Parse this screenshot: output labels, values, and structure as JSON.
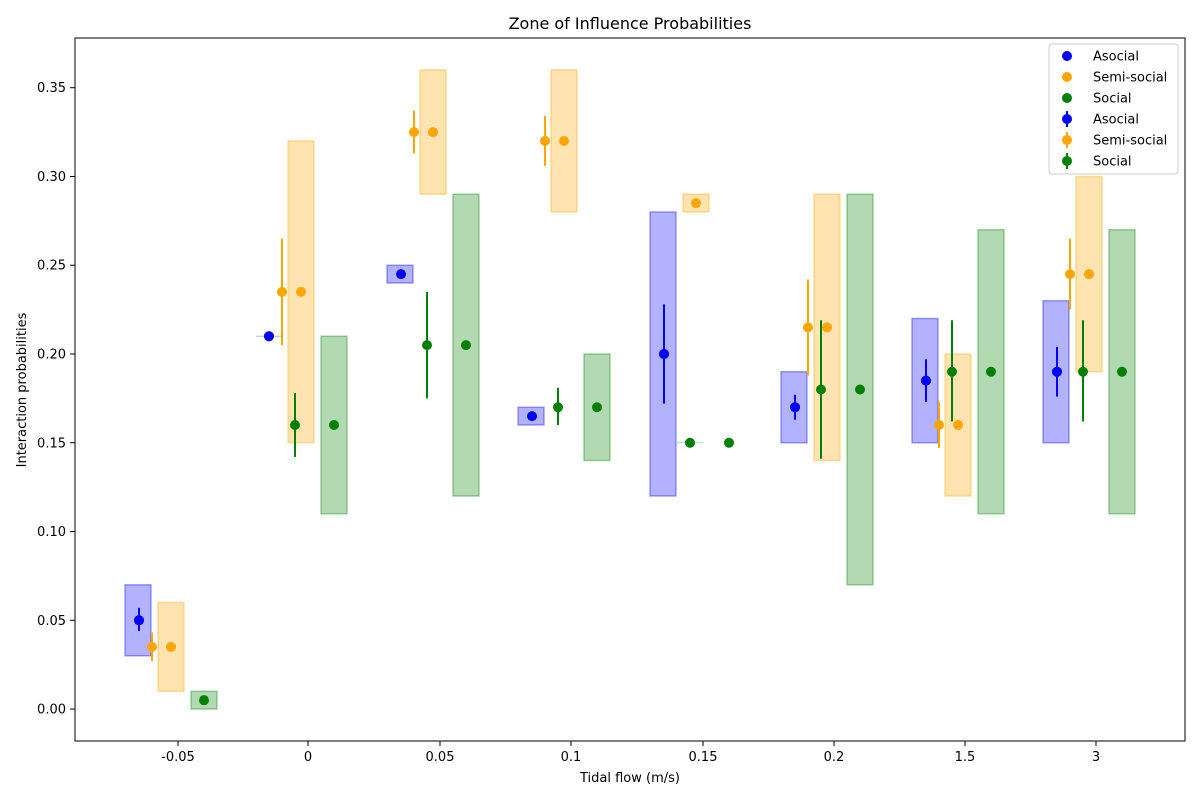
{
  "chart_data": {
    "type": "scatter",
    "title": "Zone of Influence Probabilities",
    "xlabel": "Tidal flow (m/s)",
    "ylabel": "Interaction probabilities",
    "ylim": [
      -0.018,
      0.378
    ],
    "x_tick_labels": [
      "-0.05",
      "0",
      "0.05",
      "0.1",
      "0.15",
      "0.2",
      "1.5",
      "3"
    ],
    "y_ticks": [
      0.0,
      0.05,
      0.1,
      0.15,
      0.2,
      0.25,
      0.3,
      0.35
    ],
    "y_tick_labels": [
      "0.00",
      "0.05",
      "0.10",
      "0.15",
      "0.20",
      "0.25",
      "0.30",
      "0.35"
    ],
    "grid": false,
    "legend_position": "top-right",
    "legend": [
      "Asocial",
      "Semi-social",
      "Social",
      "Asocial",
      "Semi-social",
      "Social"
    ],
    "colors": {
      "Asocial": "#0000ff",
      "Semi-social": "#ffa500",
      "Social": "#008000"
    },
    "series": [
      {
        "name": "Asocial",
        "groups": [
          {
            "category": "-0.05",
            "errorbar": {
              "y": 0.05,
              "lo": 0.044,
              "hi": 0.057
            },
            "point": {
              "y": 0.05
            },
            "range": [
              0.03,
              0.07
            ]
          },
          {
            "category": "0",
            "errorbar": {
              "y": 0.21,
              "lo": 0.21,
              "hi": 0.21
            },
            "point": {
              "y": 0.21
            },
            "range": null
          },
          {
            "category": "0.05",
            "errorbar": null,
            "point": {
              "y": 0.245
            },
            "range": [
              0.24,
              0.25
            ]
          },
          {
            "category": "0.1",
            "errorbar": null,
            "point": {
              "y": 0.165
            },
            "range": [
              0.16,
              0.17
            ]
          },
          {
            "category": "0.15",
            "errorbar": {
              "y": 0.2,
              "lo": 0.172,
              "hi": 0.228
            },
            "point": {
              "y": 0.2
            },
            "range": [
              0.12,
              0.28
            ]
          },
          {
            "category": "0.2",
            "errorbar": {
              "y": 0.17,
              "lo": 0.163,
              "hi": 0.177
            },
            "point": {
              "y": 0.17
            },
            "range": [
              0.15,
              0.19
            ]
          },
          {
            "category": "1.5",
            "errorbar": {
              "y": 0.185,
              "lo": 0.173,
              "hi": 0.197
            },
            "point": {
              "y": 0.185
            },
            "range": [
              0.15,
              0.22
            ]
          },
          {
            "category": "3",
            "errorbar": {
              "y": 0.19,
              "lo": 0.176,
              "hi": 0.204
            },
            "point": {
              "y": 0.19
            },
            "range": [
              0.15,
              0.23
            ]
          }
        ]
      },
      {
        "name": "Semi-social",
        "groups": [
          {
            "category": "-0.05",
            "errorbar": {
              "y": 0.035,
              "lo": 0.027,
              "hi": 0.043
            },
            "point": {
              "y": 0.035
            },
            "range": [
              0.01,
              0.06
            ]
          },
          {
            "category": "0",
            "errorbar": {
              "y": 0.235,
              "lo": 0.205,
              "hi": 0.265
            },
            "point": {
              "y": 0.235
            },
            "range": [
              0.15,
              0.32
            ]
          },
          {
            "category": "0.05",
            "errorbar": {
              "y": 0.325,
              "lo": 0.313,
              "hi": 0.337
            },
            "point": {
              "y": 0.325
            },
            "range": [
              0.29,
              0.36
            ]
          },
          {
            "category": "0.1",
            "errorbar": {
              "y": 0.32,
              "lo": 0.306,
              "hi": 0.334
            },
            "point": {
              "y": 0.32
            },
            "range": [
              0.28,
              0.36
            ]
          },
          {
            "category": "0.15",
            "errorbar": null,
            "point": {
              "y": 0.285
            },
            "range": [
              0.28,
              0.29
            ]
          },
          {
            "category": "0.2",
            "errorbar": {
              "y": 0.215,
              "lo": 0.188,
              "hi": 0.242
            },
            "point": {
              "y": 0.215
            },
            "range": [
              0.14,
              0.29
            ]
          },
          {
            "category": "1.5",
            "errorbar": {
              "y": 0.16,
              "lo": 0.147,
              "hi": 0.173
            },
            "point": {
              "y": 0.16
            },
            "range": [
              0.12,
              0.2
            ]
          },
          {
            "category": "3",
            "errorbar": {
              "y": 0.245,
              "lo": 0.225,
              "hi": 0.265
            },
            "point": {
              "y": 0.245
            },
            "range": [
              0.19,
              0.3
            ]
          }
        ]
      },
      {
        "name": "Social",
        "groups": [
          {
            "category": "-0.05",
            "errorbar": null,
            "point": {
              "y": 0.005
            },
            "range": [
              0.0,
              0.01
            ]
          },
          {
            "category": "0",
            "errorbar": {
              "y": 0.16,
              "lo": 0.142,
              "hi": 0.178
            },
            "point": {
              "y": 0.16
            },
            "range": [
              0.11,
              0.21
            ]
          },
          {
            "category": "0.05",
            "errorbar": {
              "y": 0.205,
              "lo": 0.175,
              "hi": 0.235
            },
            "point": {
              "y": 0.205
            },
            "range": [
              0.12,
              0.29
            ]
          },
          {
            "category": "0.1",
            "errorbar": {
              "y": 0.17,
              "lo": 0.16,
              "hi": 0.181
            },
            "point": {
              "y": 0.17
            },
            "range": [
              0.14,
              0.2
            ]
          },
          {
            "category": "0.15",
            "errorbar": {
              "y": 0.15,
              "lo": 0.15,
              "hi": 0.15
            },
            "point": {
              "y": 0.15
            },
            "range": null
          },
          {
            "category": "0.2",
            "errorbar": {
              "y": 0.18,
              "lo": 0.141,
              "hi": 0.219
            },
            "point": {
              "y": 0.18
            },
            "range": [
              0.07,
              0.29
            ]
          },
          {
            "category": "1.5",
            "errorbar": {
              "y": 0.19,
              "lo": 0.162,
              "hi": 0.219
            },
            "point": {
              "y": 0.19
            },
            "range": [
              0.11,
              0.27
            ]
          },
          {
            "category": "3",
            "errorbar": {
              "y": 0.19,
              "lo": 0.162,
              "hi": 0.219
            },
            "point": {
              "y": 0.19
            },
            "range": [
              0.11,
              0.27
            ]
          }
        ]
      }
    ]
  }
}
